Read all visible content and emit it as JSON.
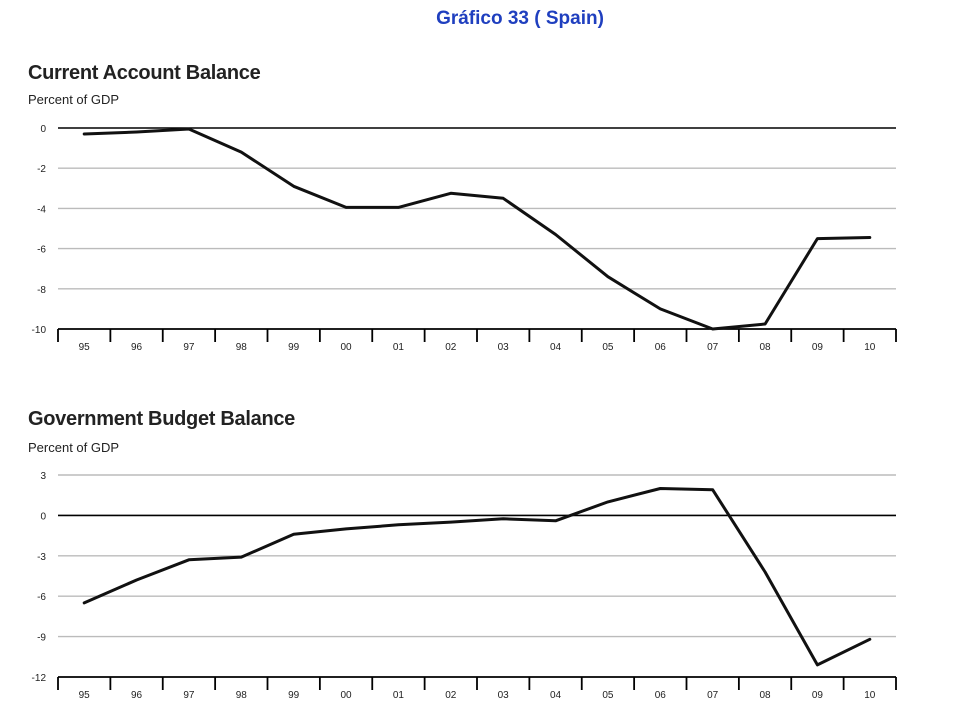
{
  "header": {
    "title": "Gráfico 33  ( Spain)"
  },
  "chart_data": [
    {
      "type": "line",
      "title": "Current Account Balance",
      "subtitle": "Percent of GDP",
      "categories": [
        "95",
        "96",
        "97",
        "98",
        "99",
        "00",
        "01",
        "02",
        "03",
        "04",
        "05",
        "06",
        "07",
        "08",
        "09",
        "10"
      ],
      "series": [
        {
          "values": [
            -0.3,
            -0.2,
            -0.05,
            -1.2,
            -2.9,
            -3.95,
            -3.95,
            -3.25,
            -3.5,
            -5.3,
            -7.4,
            -9.0,
            -10.0,
            -9.75,
            -5.5,
            -5.45
          ]
        }
      ],
      "yticks": [
        0,
        -2,
        -4,
        -6,
        -8,
        -10
      ],
      "ylim": [
        -10,
        0
      ],
      "grid": true,
      "colors": {
        "line": "#111111",
        "grid": "#bbbbbb",
        "zero": "#000000"
      }
    },
    {
      "type": "line",
      "title": "Government Budget Balance",
      "subtitle": "Percent of GDP",
      "categories": [
        "95",
        "96",
        "97",
        "98",
        "99",
        "00",
        "01",
        "02",
        "03",
        "04",
        "05",
        "06",
        "07",
        "08",
        "09",
        "10"
      ],
      "series": [
        {
          "values": [
            -6.5,
            -4.8,
            -3.3,
            -3.1,
            -1.4,
            -1.0,
            -0.7,
            -0.5,
            -0.25,
            -0.4,
            1.0,
            2.0,
            1.9,
            -4.2,
            -11.1,
            -9.2
          ]
        }
      ],
      "yticks": [
        3,
        0,
        -3,
        -6,
        -9,
        -12
      ],
      "ylim": [
        -12,
        3
      ],
      "grid": true,
      "colors": {
        "line": "#111111",
        "grid": "#bbbbbb",
        "zero": "#000000"
      }
    }
  ]
}
